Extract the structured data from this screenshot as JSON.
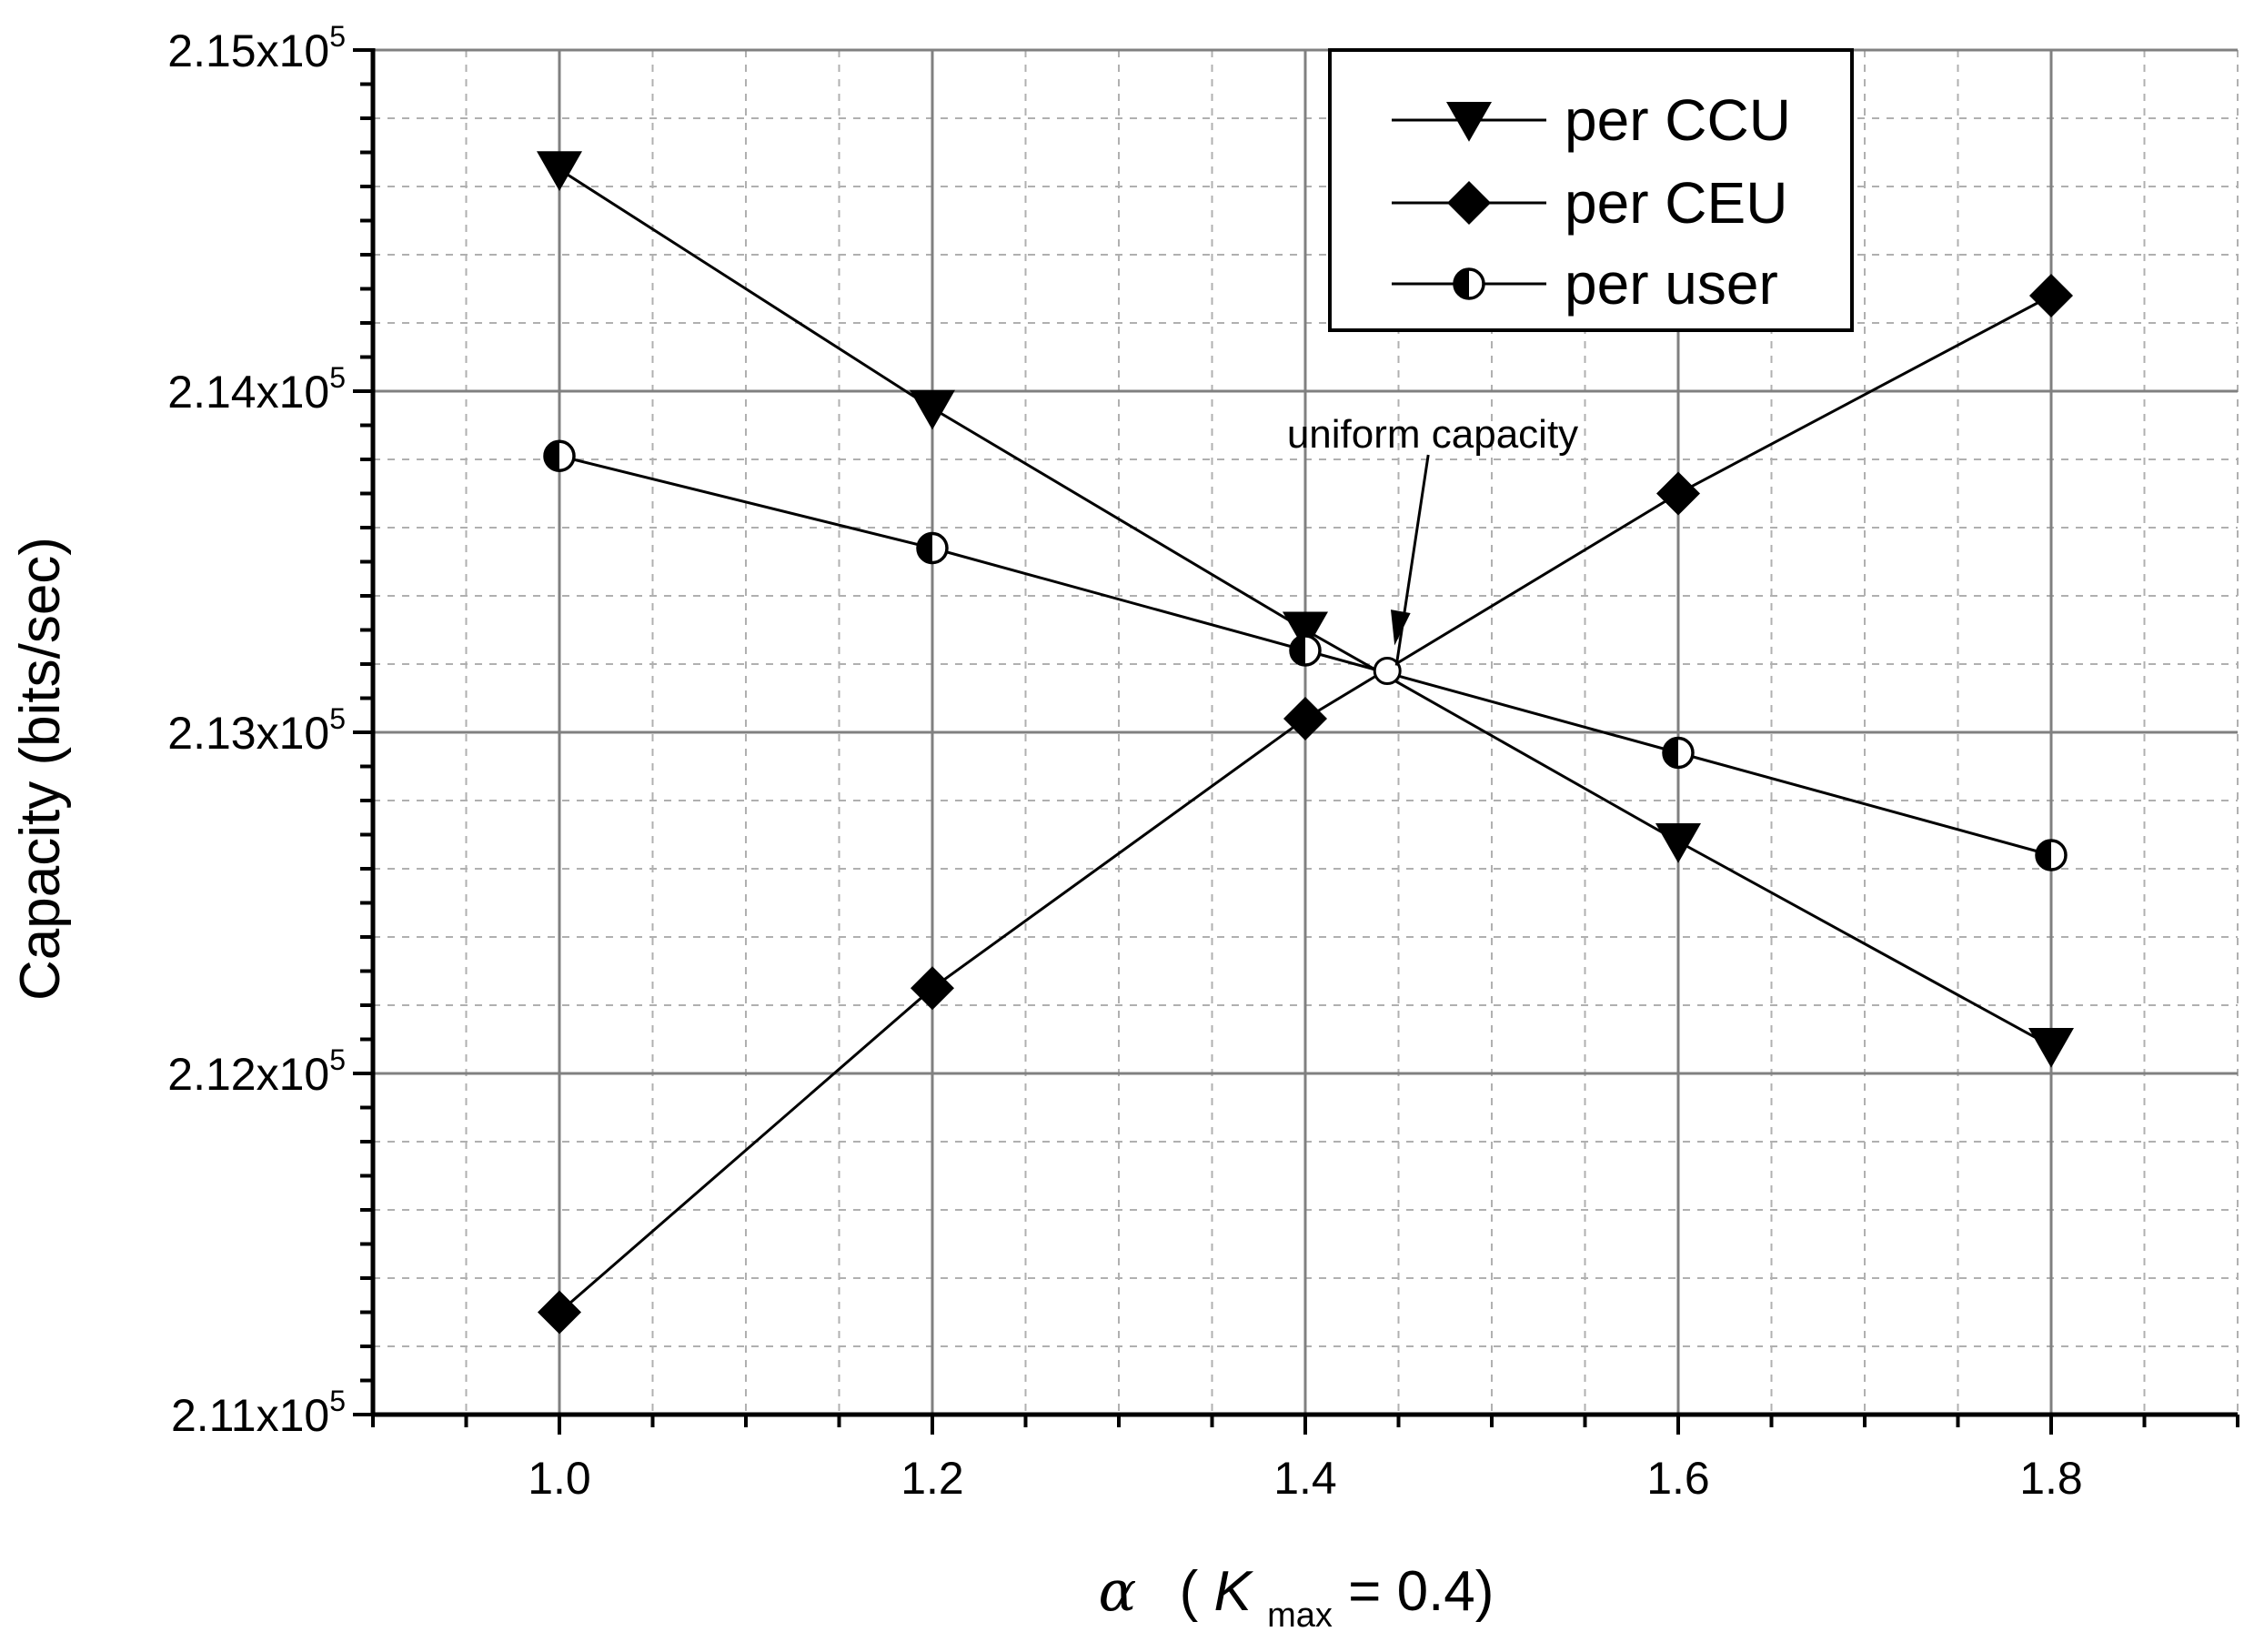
{
  "chart_data": {
    "type": "line",
    "xlabel_symbol": "α",
    "xlabel_paren_open": "(",
    "xlabel_K": "K",
    "xlabel_sub": "max",
    "xlabel_rest": " = 0.4)",
    "ylabel": "Capacity (bits/sec)",
    "xlim": [
      0.9,
      1.9
    ],
    "ylim": [
      211000,
      215000
    ],
    "x_ticks": [
      1.0,
      1.2,
      1.4,
      1.6,
      1.8
    ],
    "x_tick_labels": [
      "1.0",
      "1.2",
      "1.4",
      "1.6",
      "1.8"
    ],
    "y_ticks": [
      211000,
      212000,
      213000,
      214000,
      215000
    ],
    "y_tick_labels": [
      {
        "base": "2.11x10",
        "exp": "5"
      },
      {
        "base": "2.12x10",
        "exp": "5"
      },
      {
        "base": "2.13x10",
        "exp": "5"
      },
      {
        "base": "2.14x10",
        "exp": "5"
      },
      {
        "base": "2.15x10",
        "exp": "5"
      }
    ],
    "grid": true,
    "legend_position": "top-right",
    "series": [
      {
        "name": "per CCU",
        "marker": "triangle-down",
        "x": [
          1.0,
          1.2,
          1.4,
          1.6,
          1.8
        ],
        "values": [
          214650,
          213950,
          213300,
          212680,
          212080
        ]
      },
      {
        "name": "per CEU",
        "marker": "diamond",
        "x": [
          1.0,
          1.2,
          1.4,
          1.6,
          1.8
        ],
        "values": [
          211300,
          212250,
          213040,
          213700,
          214280
        ]
      },
      {
        "name": "per user",
        "marker": "half-circle",
        "x": [
          1.0,
          1.2,
          1.4,
          1.6,
          1.8
        ],
        "values": [
          213810,
          213540,
          213240,
          212940,
          212640
        ]
      }
    ],
    "annotation": {
      "text": "uniform capacity",
      "x": 1.444,
      "y": 213180
    }
  }
}
